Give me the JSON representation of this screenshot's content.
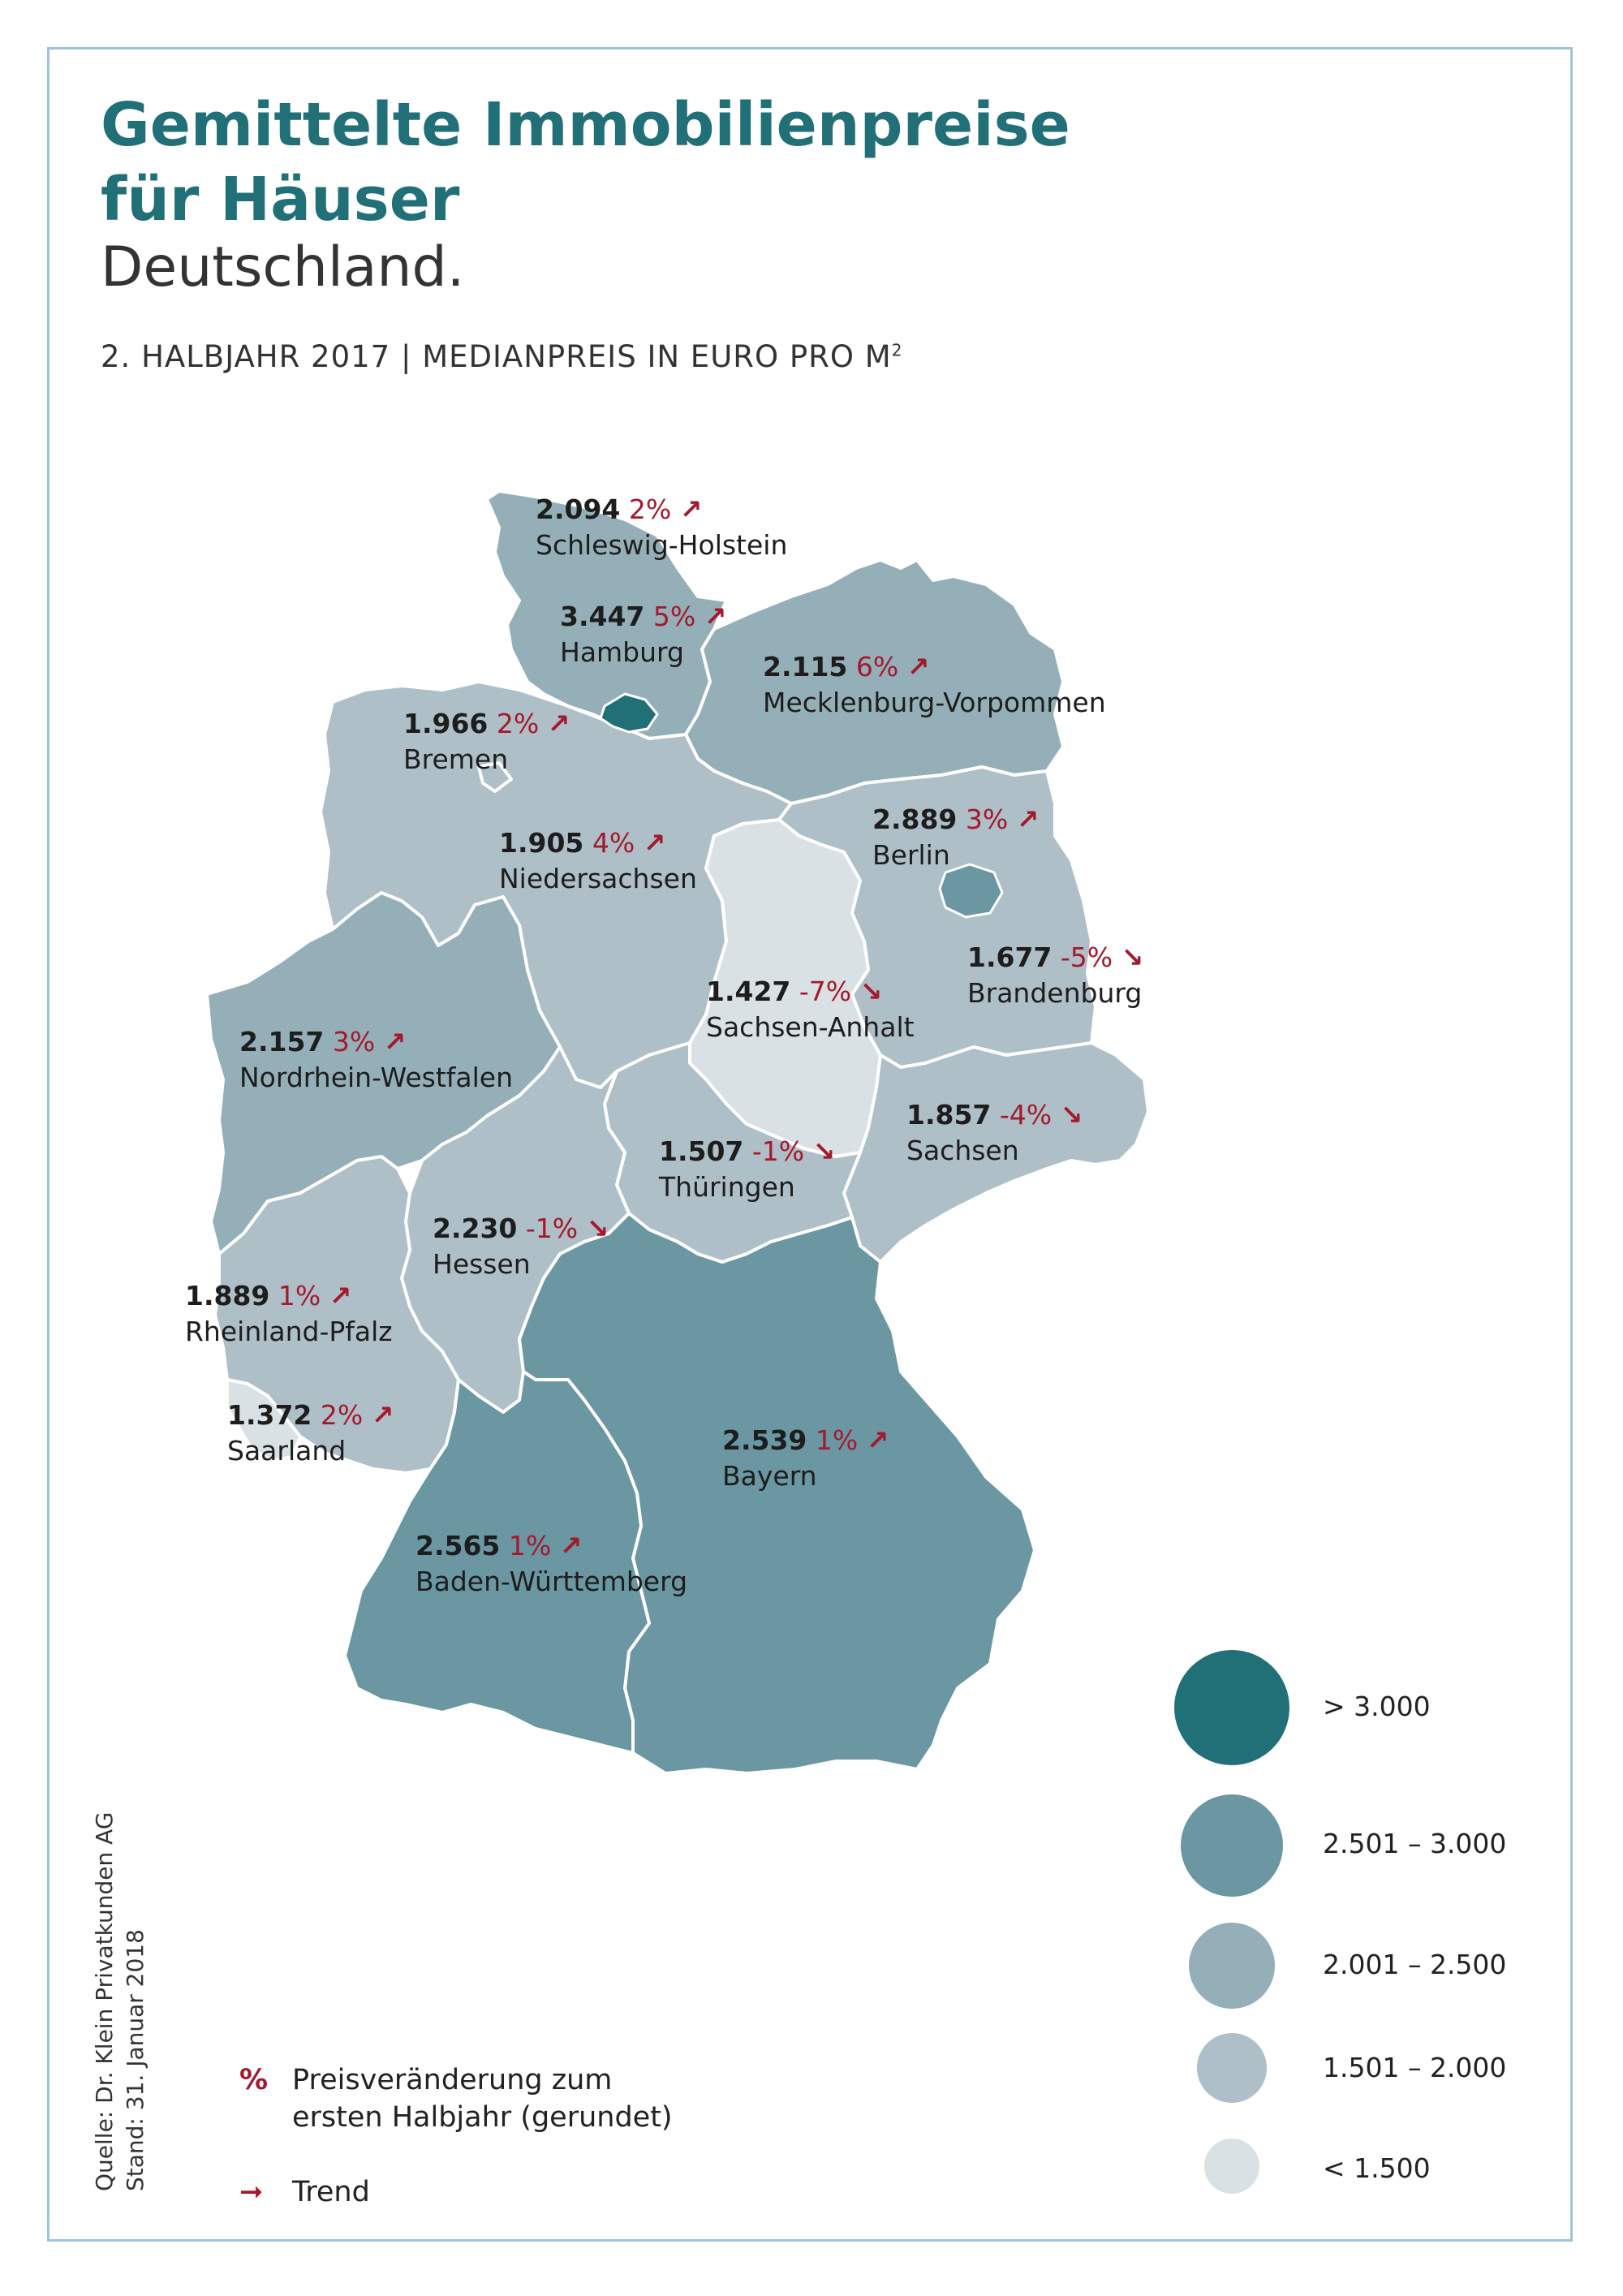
{
  "title_line1": "Gemittelte Immobilienpreise",
  "title_line2": "für Häuser",
  "subtitle": "Deutschland.",
  "period_text": "2. HALBJAHR 2017 | MEDIANPREIS IN EURO PRO M",
  "period_sup": "2",
  "colors": {
    "gt3000": "#217078",
    "c2501_3000": "#6a97a2",
    "c2001_2500": "#94afb8",
    "c1501_2000": "#aebfc7",
    "lt1500": "#d9e1e5",
    "trend": "#a3192e",
    "border": "#9ec3da"
  },
  "regions": {
    "sh": {
      "value": "2.094",
      "change": "2%",
      "trend": "↗",
      "name": "Schleswig-Holstein"
    },
    "hh": {
      "value": "3.447",
      "change": "5%",
      "trend": "↗",
      "name": "Hamburg"
    },
    "mv": {
      "value": "2.115",
      "change": "6%",
      "trend": "↗",
      "name": "Mecklenburg-Vorpommen"
    },
    "hb": {
      "value": "1.966",
      "change": "2%",
      "trend": "↗",
      "name": "Bremen"
    },
    "be": {
      "value": "2.889",
      "change": "3%",
      "trend": "↗",
      "name": "Berlin"
    },
    "ni": {
      "value": "1.905",
      "change": "4%",
      "trend": "↗",
      "name": "Niedersachsen"
    },
    "bb": {
      "value": "1.677",
      "change": "-5%",
      "trend": "↘",
      "name": "Brandenburg"
    },
    "st": {
      "value": "1.427",
      "change": "-7%",
      "trend": "↘",
      "name": "Sachsen-Anhalt"
    },
    "nw": {
      "value": "2.157",
      "change": "3%",
      "trend": "↗",
      "name": "Nordrhein-Westfalen"
    },
    "sn": {
      "value": "1.857",
      "change": "-4%",
      "trend": "↘",
      "name": "Sachsen"
    },
    "th": {
      "value": "1.507",
      "change": "-1%",
      "trend": "↘",
      "name": "Thüringen"
    },
    "he": {
      "value": "2.230",
      "change": "-1%",
      "trend": "↘",
      "name": "Hessen"
    },
    "rp": {
      "value": "1.889",
      "change": "1%",
      "trend": "↗",
      "name": "Rheinland-Pfalz"
    },
    "sl": {
      "value": "1.372",
      "change": "2%",
      "trend": "↗",
      "name": "Saarland"
    },
    "by": {
      "value": "2.539",
      "change": "1%",
      "trend": "↗",
      "name": "Bayern"
    },
    "bw": {
      "value": "2.565",
      "change": "1%",
      "trend": "↗",
      "name": "Baden-Württemberg"
    }
  },
  "legend": [
    {
      "label": "> 3.000"
    },
    {
      "label": "2.501 – 3.000"
    },
    {
      "label": "2.001 – 2.500"
    },
    {
      "label": "1.501 – 2.000"
    },
    {
      "label": "< 1.500"
    }
  ],
  "key": {
    "percent_symbol": "%",
    "percent_text_line1": "Preisveränderung zum",
    "percent_text_line2": "ersten Halbjahr (gerundet)",
    "trend_symbol": "➞",
    "trend_text": "Trend"
  },
  "source_line1": "Quelle: Dr. Klein Privatkunden AG",
  "source_line2": "Stand: 31. Januar 2018"
}
